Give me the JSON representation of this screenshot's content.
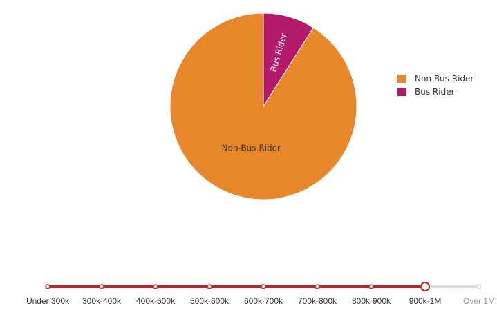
{
  "chart_data": {
    "type": "pie",
    "categories": [
      "Non-Bus Rider",
      "Bus Rider"
    ],
    "values": [
      91,
      9
    ],
    "colors": [
      "#e8862a",
      "#b5196a"
    ],
    "title": "",
    "legend": {
      "placement": "right",
      "entries": [
        "Non-Bus Rider",
        "Bus Rider"
      ]
    }
  },
  "slider": {
    "labels": [
      "Under 300k",
      "300k-400k",
      "400k-500k",
      "500k-600k",
      "600k-700k",
      "700k-800k",
      "800k-900k",
      "900k-1M",
      "Over 1M"
    ],
    "selected_index": 7,
    "active_color": "#c0261e",
    "inactive_color": "#dcdcdc"
  }
}
